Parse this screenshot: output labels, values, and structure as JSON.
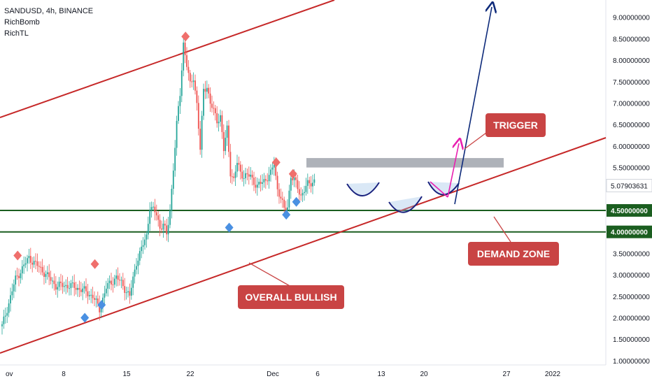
{
  "header": {
    "symbol_line": "SANDUSD, 4h, BINANCE",
    "indicators": [
      "RichBomb",
      "RichTL"
    ]
  },
  "colors": {
    "up": "#26a69a",
    "down": "#ef5350",
    "channel": "#c62828",
    "zone": "#1b5e20",
    "trigger_zone": "#a0a4ad",
    "arrow_up": "#0d2a7a",
    "arrow_pink": "#e91eb0",
    "callout": "#c94444",
    "marker_top": "#ef6f6c",
    "marker_bottom": "#4a90e2"
  },
  "annotations": {
    "trigger": "TRIGGER",
    "demand_zone": "DEMAND ZONE",
    "overall_bullish": "OVERALL BULLISH"
  },
  "chart_data": {
    "type": "candlestick",
    "title": "SANDUSD, 4h, BINANCE",
    "y_ticks": [
      "1.00000000",
      "1.50000000",
      "2.00000000",
      "2.50000000",
      "3.00000000",
      "3.50000000",
      "4.00000000",
      "4.50000000",
      "5.00000000",
      "5.50000000",
      "6.00000000",
      "6.50000000",
      "7.00000000",
      "7.50000000",
      "8.00000000",
      "8.50000000",
      "9.00000000"
    ],
    "x_ticks": [
      "ov",
      "8",
      "15",
      "22",
      "Dec",
      "6",
      "13",
      "20",
      "27",
      "2022"
    ],
    "ylim": [
      0.95,
      9.45
    ],
    "last_price": "5.07903631",
    "price_labels": [
      {
        "value": 4.5,
        "label": "4.50000000"
      },
      {
        "value": 4.0,
        "label": "4.00000000"
      }
    ],
    "horizontal_levels": [
      4.5,
      4.0
    ],
    "trigger_zone": [
      5.5,
      5.72
    ],
    "path": [
      [
        0,
        1.8
      ],
      [
        4,
        2.9
      ],
      [
        8,
        3.4
      ],
      [
        12,
        3.1
      ],
      [
        16,
        2.75
      ],
      [
        20,
        2.75
      ],
      [
        24,
        2.65
      ],
      [
        27,
        2.5
      ],
      [
        29,
        2.2
      ],
      [
        31,
        2.7
      ],
      [
        34,
        2.95
      ],
      [
        36,
        2.75
      ],
      [
        38,
        2.5
      ],
      [
        40,
        3.3
      ],
      [
        41,
        3.5
      ],
      [
        43,
        3.9
      ],
      [
        44,
        4.6
      ],
      [
        46,
        4.4
      ],
      [
        47,
        4.1
      ],
      [
        48,
        4.2
      ],
      [
        49,
        3.9
      ],
      [
        50,
        4.5
      ],
      [
        51,
        5.5
      ],
      [
        52,
        6.5
      ],
      [
        53,
        7.2
      ],
      [
        54,
        8.4
      ],
      [
        55,
        7.9
      ],
      [
        56,
        7.4
      ],
      [
        57,
        7.6
      ],
      [
        58,
        7.0
      ],
      [
        59,
        5.9
      ],
      [
        60,
        7.3
      ],
      [
        61,
        7.4
      ],
      [
        62,
        7.0
      ],
      [
        64,
        6.6
      ],
      [
        65,
        6.7
      ],
      [
        66,
        5.9
      ],
      [
        67,
        6.4
      ],
      [
        68,
        5.4
      ],
      [
        69,
        5.2
      ],
      [
        70,
        5.6
      ],
      [
        71,
        5.4
      ],
      [
        72,
        5.3
      ],
      [
        74,
        5.3
      ],
      [
        76,
        5.05
      ],
      [
        78,
        5.2
      ],
      [
        80,
        5.35
      ],
      [
        81,
        5.6
      ],
      [
        82,
        5.0
      ],
      [
        83,
        4.8
      ],
      [
        84,
        4.5
      ],
      [
        85,
        4.6
      ],
      [
        86,
        5.3
      ],
      [
        87,
        5.2
      ],
      [
        89,
        4.85
      ],
      [
        91,
        5.1
      ],
      [
        93,
        5.2
      ]
    ],
    "top_markers": [
      [
        4,
        3.45
      ],
      [
        27,
        3.25
      ],
      [
        54,
        8.55
      ],
      [
        81,
        5.62
      ],
      [
        86,
        5.35
      ]
    ],
    "bottom_markers": [
      [
        24,
        2.0
      ],
      [
        29,
        2.3
      ],
      [
        67,
        4.1
      ],
      [
        84,
        4.4
      ],
      [
        87,
        4.7
      ]
    ]
  }
}
